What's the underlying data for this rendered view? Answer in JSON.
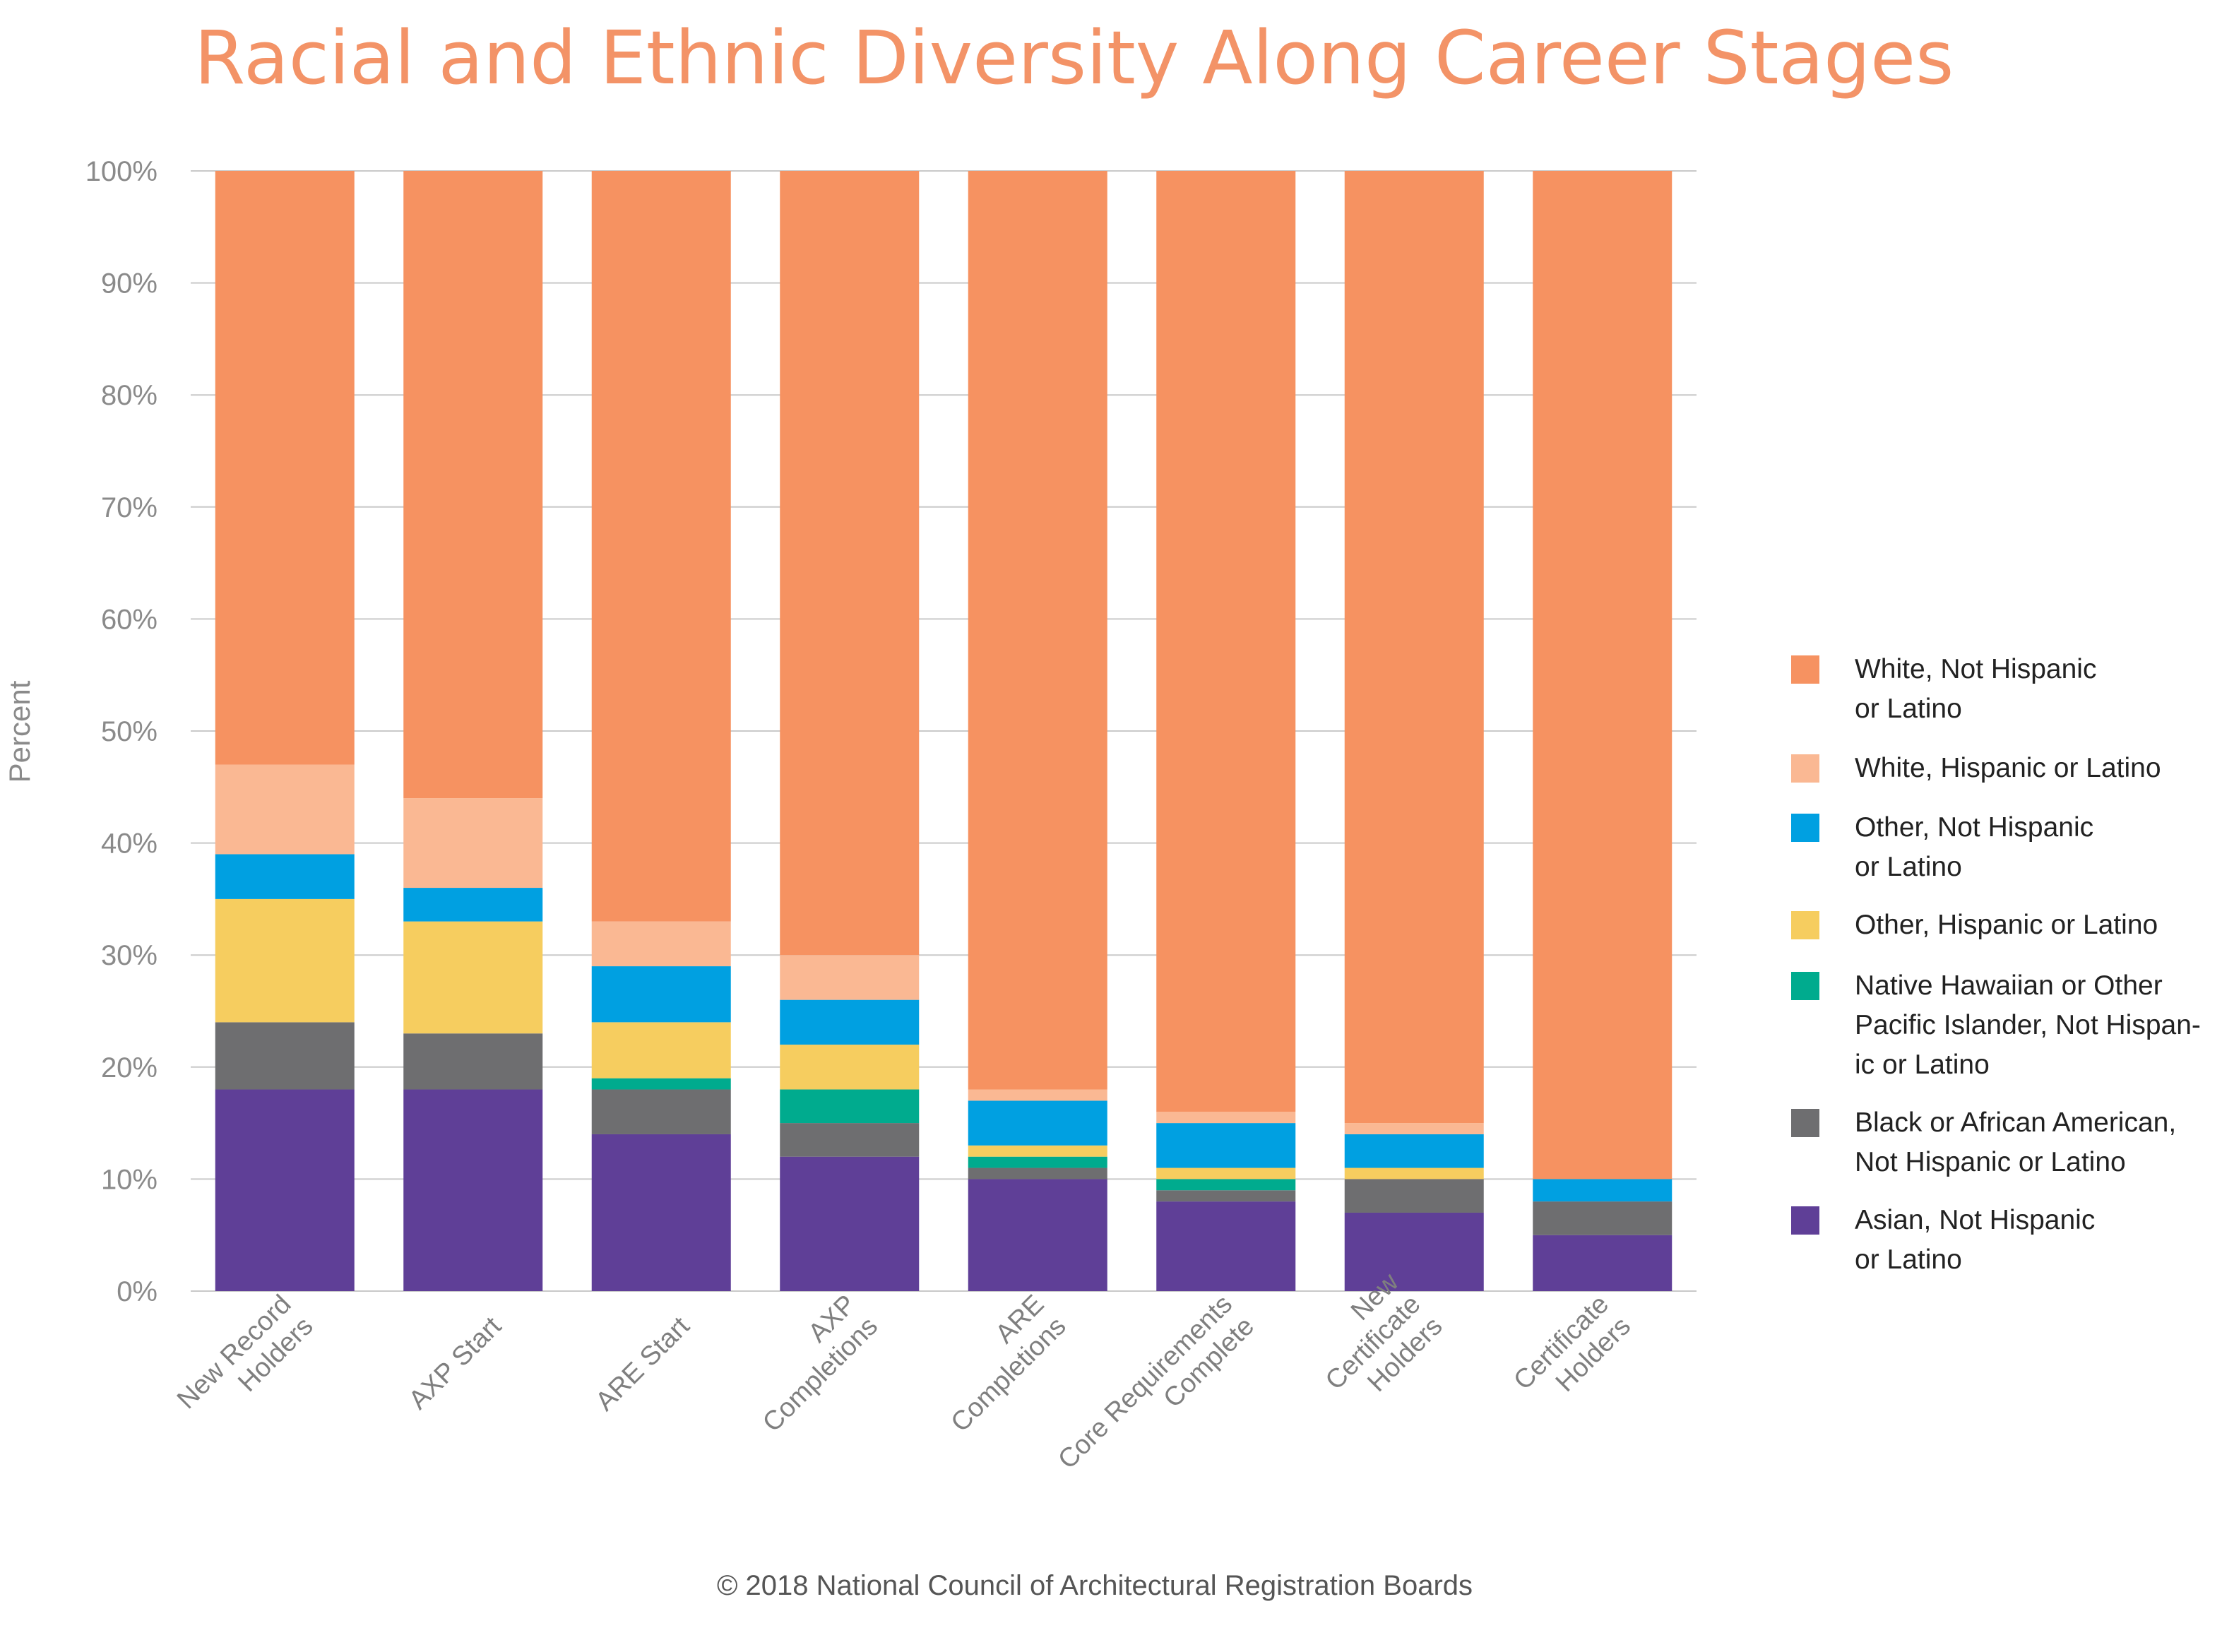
{
  "chart_data": {
    "type": "bar",
    "stacked": true,
    "title": "Racial and Ethnic Diversity Along Career Stages",
    "ylabel": "Percent",
    "xlabel": "",
    "ylim": [
      0,
      100
    ],
    "y_ticks": [
      "0%",
      "10%",
      "20%",
      "30%",
      "40%",
      "50%",
      "60%",
      "70%",
      "80%",
      "90%",
      "100%"
    ],
    "grid": true,
    "legend_position": "right",
    "categories": [
      [
        "New Record",
        "Holders"
      ],
      [
        "AXP Start"
      ],
      [
        "ARE Start"
      ],
      [
        "AXP",
        "Completions"
      ],
      [
        "ARE",
        "Completions"
      ],
      [
        "Core Requirements",
        "Complete"
      ],
      [
        "New",
        "Certificate",
        "Holders"
      ],
      [
        "Certificate",
        "Holders"
      ]
    ],
    "series": [
      {
        "name": "Asian, Not Hispanic or Latino",
        "legend_lines": [
          "Asian, Not Hispanic",
          "or Latino"
        ],
        "color": "#5f3f97",
        "values": [
          18,
          18,
          14,
          12,
          10,
          8,
          7,
          5
        ]
      },
      {
        "name": "Black or African American, Not Hispanic or Latino",
        "legend_lines": [
          "Black or African American,",
          "Not Hispanic or Latino"
        ],
        "color": "#6e6e70",
        "values": [
          6,
          5,
          4,
          3,
          1,
          1,
          3,
          3
        ]
      },
      {
        "name": "Native Hawaiian or Other Pacific Islander, Not Hispanic or Latino",
        "legend_lines": [
          "Native Hawaiian or Other",
          "Pacific Islander, Not Hispan-",
          "ic or Latino"
        ],
        "color": "#00ab8e",
        "values": [
          0,
          0,
          1,
          3,
          1,
          1,
          0,
          0
        ]
      },
      {
        "name": "Other, Hispanic or Latino",
        "legend_lines": [
          "Other, Hispanic or Latino"
        ],
        "color": "#f6cd5f",
        "values": [
          11,
          10,
          5,
          4,
          1,
          1,
          1,
          0
        ]
      },
      {
        "name": "Other, Not Hispanic or Latino",
        "legend_lines": [
          "Other, Not Hispanic",
          "or Latino"
        ],
        "color": "#00a0e1",
        "values": [
          4,
          3,
          5,
          4,
          4,
          4,
          3,
          2
        ]
      },
      {
        "name": "White, Hispanic or Latino",
        "legend_lines": [
          "White, Hispanic or Latino"
        ],
        "color": "#fab893",
        "values": [
          8,
          8,
          4,
          4,
          1,
          1,
          1,
          0
        ]
      },
      {
        "name": "White, Not Hispanic or Latino",
        "legend_lines": [
          "White, Not Hispanic",
          "or Latino"
        ],
        "color": "#f69261",
        "values": [
          53,
          56,
          67,
          70,
          82,
          84,
          85,
          90
        ]
      }
    ]
  },
  "footer": "© 2018 National Council of Architectural Registration Boards"
}
